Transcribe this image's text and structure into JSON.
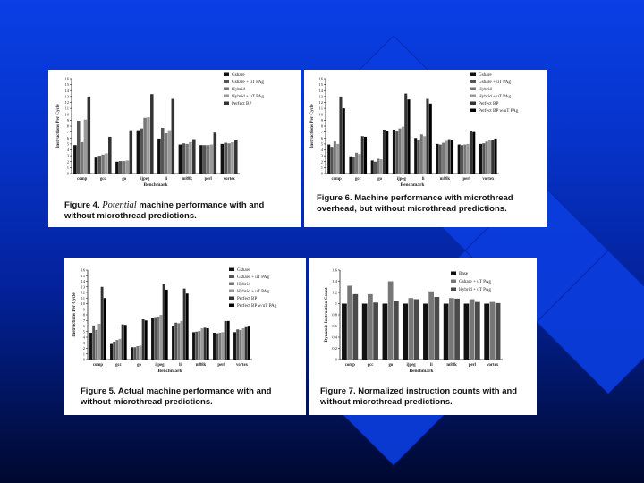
{
  "figures": [
    {
      "caption_prefix": "Figure 4.",
      "caption_emph": "Potential",
      "caption_rest": "machine performance with and without microthread predictions."
    },
    {
      "caption_prefix": "Figure 6.",
      "caption_emph": "",
      "caption_rest": "Machine performance with microthread overhead, but without microthread predictions."
    },
    {
      "caption_prefix": "Figure 5.",
      "caption_emph": "",
      "caption_rest": "Actual machine performance with and without microthread predictions."
    },
    {
      "caption_prefix": "Figure 7.",
      "caption_emph": "",
      "caption_rest": "Normalized instruction counts with and without microthread predictions."
    }
  ],
  "chart_data": [
    {
      "type": "bar",
      "figure": "Figure 4",
      "ylabel": "Instructions Per Cycle",
      "xlabel": "Benchmark",
      "ylim": [
        0,
        16
      ],
      "yticks": [
        "0",
        "1",
        "2",
        "3",
        "4",
        "5",
        "6",
        "7",
        "8",
        "9",
        "10",
        "11",
        "12",
        "13",
        "14",
        "15",
        "16"
      ],
      "categories": [
        "comp",
        "gcc",
        "go",
        "ijpeg",
        "li",
        "m88k",
        "perl",
        "vortex"
      ],
      "colors": [
        "#111111",
        "#555555",
        "#777777",
        "#9a9a9a",
        "#333333"
      ],
      "series": [
        {
          "name": "Gshare",
          "values": [
            4.8,
            2.7,
            2.0,
            7.3,
            5.9,
            4.9,
            4.8,
            5.0
          ]
        },
        {
          "name": "Gshare + uT PAg",
          "values": [
            8.9,
            3.0,
            2.1,
            7.6,
            7.7,
            5.1,
            4.8,
            5.2
          ]
        },
        {
          "name": "Hybrid",
          "values": [
            5.3,
            3.2,
            2.1,
            9.4,
            6.8,
            5.0,
            4.8,
            5.1
          ]
        },
        {
          "name": "Hybrid + uT PAg",
          "values": [
            9.1,
            3.4,
            2.2,
            9.5,
            7.3,
            5.3,
            4.9,
            5.3
          ]
        },
        {
          "name": "Perfect BP",
          "values": [
            13.0,
            6.2,
            7.3,
            13.4,
            12.6,
            5.8,
            6.9,
            5.6
          ]
        }
      ]
    },
    {
      "type": "bar",
      "figure": "Figure 6",
      "ylabel": "Instructions Per Cycle",
      "xlabel": "Benchmark",
      "ylim": [
        0,
        16
      ],
      "yticks": [
        "0",
        "1",
        "2",
        "3",
        "4",
        "5",
        "6",
        "7",
        "8",
        "9",
        "10",
        "11",
        "12",
        "13",
        "14",
        "15",
        "16"
      ],
      "categories": [
        "comp",
        "gcc",
        "go",
        "ijpeg",
        "li",
        "m88k",
        "perl",
        "vortex"
      ],
      "colors": [
        "#111111",
        "#555555",
        "#777777",
        "#9a9a9a",
        "#333333",
        "#000000"
      ],
      "series": [
        {
          "name": "Gshare",
          "values": [
            4.9,
            2.9,
            2.2,
            7.4,
            6.0,
            5.0,
            4.9,
            5.0
          ]
        },
        {
          "name": "Gshare + uT PAg",
          "values": [
            4.5,
            2.8,
            2.0,
            7.2,
            5.7,
            4.9,
            4.8,
            5.1
          ]
        },
        {
          "name": "Hybrid",
          "values": [
            5.4,
            3.5,
            2.5,
            7.6,
            6.6,
            5.2,
            4.9,
            5.4
          ]
        },
        {
          "name": "Hybrid + uT PAg",
          "values": [
            5.0,
            3.3,
            2.4,
            7.9,
            6.3,
            5.5,
            5.0,
            5.6
          ]
        },
        {
          "name": "Perfect BP",
          "values": [
            13.0,
            6.3,
            7.4,
            13.5,
            12.6,
            5.8,
            7.1,
            5.7
          ]
        },
        {
          "name": "Perfect BP w/uT PAg",
          "values": [
            11.0,
            6.2,
            7.2,
            12.5,
            11.8,
            5.7,
            7.0,
            5.9
          ]
        }
      ]
    },
    {
      "type": "bar",
      "figure": "Figure 5",
      "ylabel": "Instructions Per Cycle",
      "xlabel": "Benchmark",
      "ylim": [
        0,
        16
      ],
      "yticks": [
        "0",
        "1",
        "2",
        "3",
        "4",
        "5",
        "6",
        "7",
        "8",
        "9",
        "10",
        "11",
        "12",
        "13",
        "14",
        "15",
        "16"
      ],
      "categories": [
        "comp",
        "gcc",
        "go",
        "ijpeg",
        "li",
        "m88k",
        "perl",
        "vortex"
      ],
      "colors": [
        "#111111",
        "#555555",
        "#777777",
        "#9a9a9a",
        "#333333",
        "#000000"
      ],
      "series": [
        {
          "name": "Gshare",
          "values": [
            4.8,
            2.8,
            2.2,
            7.4,
            6.0,
            4.9,
            4.8,
            4.9
          ]
        },
        {
          "name": "Gshare + uT PAg",
          "values": [
            6.1,
            3.2,
            2.2,
            7.6,
            6.6,
            5.0,
            4.7,
            5.4
          ]
        },
        {
          "name": "Hybrid",
          "values": [
            5.3,
            3.5,
            2.4,
            7.7,
            6.5,
            5.1,
            4.8,
            5.3
          ]
        },
        {
          "name": "Hybrid + uT PAg",
          "values": [
            6.4,
            3.7,
            2.5,
            8.0,
            6.9,
            5.6,
            4.9,
            5.6
          ]
        },
        {
          "name": "Perfect BP",
          "values": [
            13.0,
            6.3,
            7.2,
            13.6,
            12.7,
            5.7,
            6.9,
            5.8
          ]
        },
        {
          "name": "Perfect BP w/uT PAg",
          "values": [
            11.0,
            6.2,
            7.0,
            12.5,
            11.8,
            5.6,
            6.9,
            5.9
          ]
        }
      ]
    },
    {
      "type": "bar",
      "figure": "Figure 7",
      "ylabel": "Dynamic Instruction Count",
      "xlabel": "Benchmark",
      "ylim": [
        0,
        1.6
      ],
      "yticks": [
        "0",
        "0.2",
        "0.4",
        "0.6",
        "0.8",
        "1",
        "1.2",
        "1.4",
        "1.6"
      ],
      "categories": [
        "comp",
        "gcc",
        "go",
        "ijpeg",
        "li",
        "m88k",
        "perl",
        "vortex"
      ],
      "colors": [
        "#111111",
        "#777777",
        "#4a4a4a"
      ],
      "series": [
        {
          "name": "Base",
          "values": [
            1.0,
            1.0,
            1.0,
            1.0,
            1.0,
            1.0,
            1.0,
            1.0
          ]
        },
        {
          "name": "Gshare + uT PAg",
          "values": [
            1.32,
            1.17,
            1.4,
            1.1,
            1.22,
            1.1,
            1.08,
            1.03
          ]
        },
        {
          "name": "Hybrid + uT PAg",
          "values": [
            1.17,
            1.02,
            1.05,
            1.08,
            1.12,
            1.09,
            1.03,
            1.01
          ]
        }
      ]
    }
  ]
}
